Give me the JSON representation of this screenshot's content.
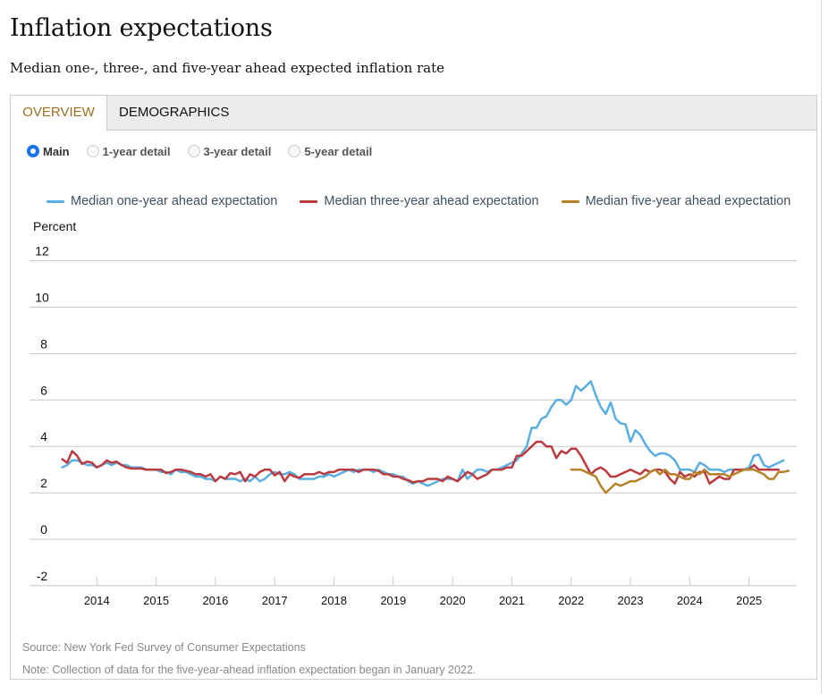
{
  "header": {
    "title": "Inflation expectations",
    "subtitle": "Median one-, three-, and five-year ahead expected inflation rate"
  },
  "tabs": [
    {
      "label": "OVERVIEW",
      "active": true
    },
    {
      "label": "DEMOGRAPHICS",
      "active": false
    }
  ],
  "views": [
    {
      "label": "Main",
      "checked": true
    },
    {
      "label": "1-year detail",
      "checked": false
    },
    {
      "label": "3-year detail",
      "checked": false
    },
    {
      "label": "5-year detail",
      "checked": false
    }
  ],
  "footer": {
    "source": "Source: New York Fed Survey of Consumer Expectations",
    "note": "Note: Collection of data for the five-year-ahead inflation expectation began in January 2022."
  },
  "colors": {
    "one_year": "#5aaee0",
    "three_year": "#bb3a3f",
    "five_year": "#b5822a",
    "active_tab": "#9a6f22",
    "radio_checked": "#1a73e8"
  },
  "chart_data": {
    "type": "line",
    "title": "Inflation expectations",
    "ylabel": "Percent",
    "xlabel": "",
    "ylim": [
      -2,
      12
    ],
    "yticks": [
      12,
      10,
      8,
      6,
      4,
      2,
      0,
      -2
    ],
    "xticks": [
      "2014",
      "2015",
      "2016",
      "2017",
      "2018",
      "2019",
      "2020",
      "2021",
      "2022",
      "2023",
      "2024",
      "2025"
    ],
    "grid": true,
    "legend_position": "top",
    "x_start": "2013-06",
    "x_end": "2025-09",
    "frequency": "monthly",
    "series": [
      {
        "name": "Median one-year ahead expectation",
        "key": "one_year",
        "start": "2013-06",
        "values": [
          3.1,
          3.2,
          3.4,
          3.4,
          3.3,
          3.2,
          3.2,
          3.1,
          3.2,
          3.3,
          3.2,
          3.3,
          3.2,
          3.2,
          3.1,
          3.1,
          3.1,
          3.0,
          3.0,
          3.0,
          2.9,
          2.9,
          2.8,
          3.0,
          2.9,
          2.9,
          2.8,
          2.7,
          2.7,
          2.6,
          2.6,
          2.5,
          2.7,
          2.6,
          2.6,
          2.6,
          2.5,
          2.6,
          2.5,
          2.7,
          2.5,
          2.6,
          2.8,
          2.9,
          2.8,
          2.8,
          2.9,
          2.8,
          2.6,
          2.6,
          2.6,
          2.6,
          2.7,
          2.7,
          2.8,
          2.7,
          2.8,
          2.9,
          3.0,
          2.9,
          3.0,
          3.0,
          3.0,
          2.9,
          3.0,
          2.9,
          2.8,
          2.8,
          2.7,
          2.7,
          2.5,
          2.4,
          2.5,
          2.4,
          2.3,
          2.4,
          2.5,
          2.6,
          2.6,
          2.6,
          2.5,
          3.0,
          2.6,
          2.8,
          3.0,
          3.0,
          2.9,
          3.0,
          3.0,
          3.1,
          3.2,
          3.3,
          3.4,
          3.7,
          4.0,
          4.8,
          4.8,
          5.2,
          5.3,
          5.7,
          6.0,
          6.0,
          5.8,
          6.0,
          6.6,
          6.4,
          6.6,
          6.8,
          6.2,
          5.7,
          5.4,
          5.9,
          5.2,
          5.0,
          4.95,
          4.2,
          4.7,
          4.5,
          4.1,
          3.8,
          3.6,
          3.7,
          3.7,
          3.6,
          3.4,
          3.0,
          3.0,
          3.0,
          2.9,
          3.3,
          3.2,
          3.0,
          3.0,
          3.0,
          2.9,
          3.0,
          3.0,
          3.0,
          3.0,
          3.1,
          3.6,
          3.65,
          3.2,
          3.1,
          3.2,
          3.3,
          3.4
        ]
      },
      {
        "name": "Median three-year ahead expectation",
        "key": "three_year",
        "start": "2013-06",
        "values": [
          3.45,
          3.3,
          3.8,
          3.6,
          3.25,
          3.35,
          3.3,
          3.1,
          3.2,
          3.4,
          3.3,
          3.35,
          3.2,
          3.1,
          3.05,
          3.05,
          3.05,
          3.0,
          3.0,
          3.0,
          3.0,
          2.85,
          2.9,
          3.0,
          3.0,
          2.95,
          2.9,
          2.8,
          2.8,
          2.7,
          2.8,
          2.5,
          2.7,
          2.6,
          2.85,
          2.8,
          2.9,
          2.5,
          2.8,
          2.7,
          2.9,
          3.0,
          3.0,
          2.75,
          2.9,
          2.5,
          2.8,
          2.7,
          2.65,
          2.8,
          2.8,
          2.8,
          2.9,
          2.8,
          2.9,
          2.9,
          3.0,
          3.0,
          3.0,
          3.0,
          2.9,
          3.0,
          3.0,
          3.0,
          2.95,
          2.8,
          2.8,
          2.7,
          2.7,
          2.6,
          2.55,
          2.45,
          2.5,
          2.5,
          2.6,
          2.6,
          2.6,
          2.5,
          2.7,
          2.6,
          2.5,
          2.7,
          2.9,
          2.8,
          2.6,
          2.7,
          2.8,
          3.0,
          3.0,
          3.0,
          3.1,
          3.1,
          3.6,
          3.6,
          3.8,
          4.0,
          4.2,
          4.2,
          4.0,
          4.0,
          3.5,
          3.8,
          3.7,
          3.9,
          3.9,
          3.6,
          3.2,
          2.8,
          3.0,
          3.1,
          2.95,
          2.7,
          2.7,
          2.8,
          2.9,
          3.0,
          2.9,
          2.8,
          3.0,
          2.9,
          3.0,
          3.0,
          2.9,
          2.6,
          2.4,
          2.9,
          2.7,
          2.8,
          2.7,
          2.9,
          2.9,
          2.4,
          2.55,
          2.7,
          2.6,
          2.6,
          3.0,
          3.0,
          3.0,
          3.0,
          3.2,
          3.0,
          3.0,
          3.0,
          3.0,
          3.0
        ]
      },
      {
        "name": "Median five-year ahead expectation",
        "key": "five_year",
        "start": "2022-01",
        "values": [
          3.0,
          3.0,
          3.0,
          2.9,
          2.8,
          2.7,
          2.3,
          2.0,
          2.2,
          2.4,
          2.3,
          2.4,
          2.5,
          2.5,
          2.6,
          2.7,
          2.9,
          3.0,
          2.8,
          3.0,
          2.8,
          2.8,
          2.7,
          2.6,
          2.6,
          2.9,
          2.8,
          3.0,
          2.8,
          2.8,
          2.8,
          2.8,
          2.7,
          2.8,
          2.9,
          3.0,
          3.0,
          3.0,
          2.9,
          2.8,
          2.6,
          2.6,
          2.9,
          2.9,
          2.95
        ]
      }
    ]
  }
}
